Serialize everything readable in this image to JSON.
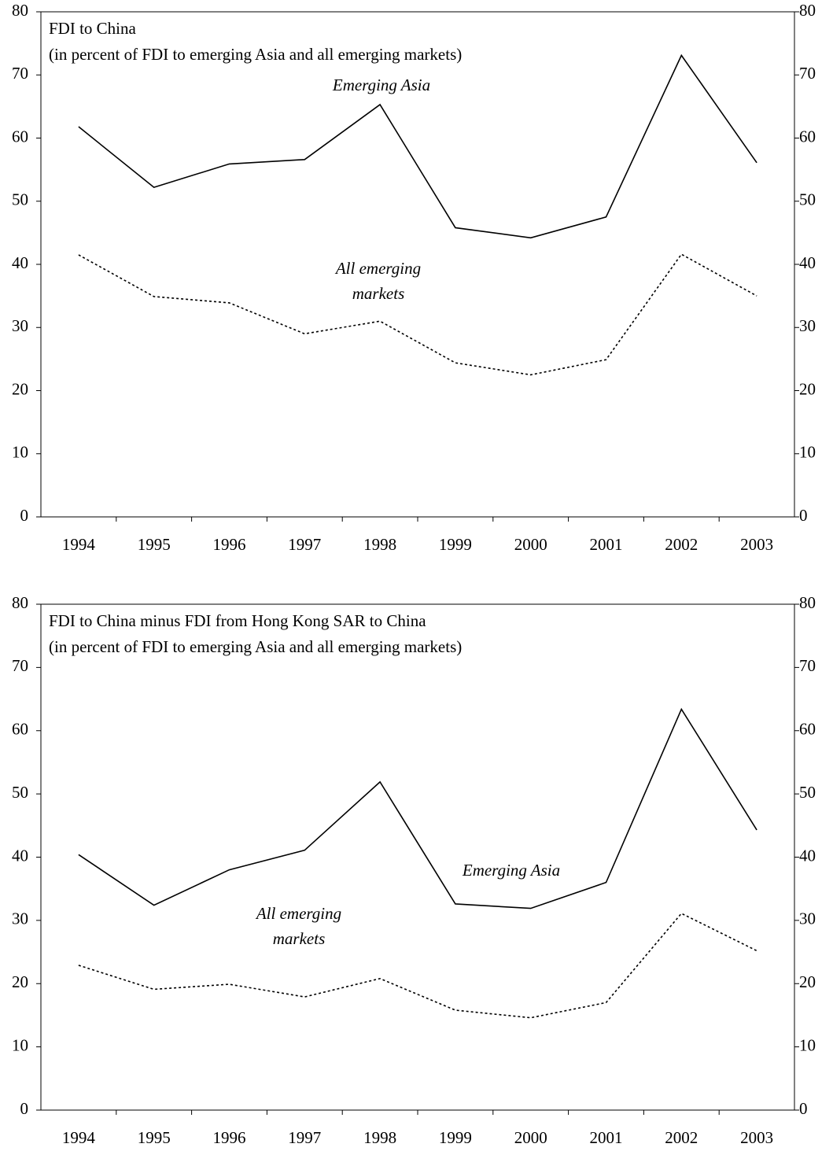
{
  "chart_data": [
    {
      "type": "line",
      "title": "FDI to China",
      "subtitle": "(in percent of FDI to emerging Asia and all emerging markets)",
      "categories": [
        "1994",
        "1995",
        "1996",
        "1997",
        "1998",
        "1999",
        "2000",
        "2001",
        "2002",
        "2003"
      ],
      "series": [
        {
          "label_lines": [
            "Emerging Asia"
          ],
          "color": "#000000",
          "style": "solid",
          "values": [
            61.8,
            52.2,
            55.9,
            56.6,
            65.3,
            45.8,
            44.2,
            47.5,
            73.1,
            56.1
          ]
        },
        {
          "label_lines": [
            "All emerging",
            "markets"
          ],
          "color": "#000000",
          "style": "dotted",
          "values": [
            41.5,
            34.9,
            33.9,
            29.0,
            31.0,
            24.4,
            22.5,
            24.9,
            41.6,
            35.0
          ]
        }
      ],
      "ylim": [
        0,
        80
      ],
      "yticks": [
        0,
        10,
        20,
        30,
        40,
        50,
        60,
        70,
        80
      ],
      "y2lim": [
        0,
        80
      ],
      "y2ticks": [
        0,
        10,
        20,
        30,
        40,
        50,
        60,
        70,
        80
      ]
    },
    {
      "type": "line",
      "title": "FDI to China minus FDI from Hong Kong SAR to China",
      "subtitle": "(in percent of FDI to emerging Asia and all emerging markets)",
      "categories": [
        "1994",
        "1995",
        "1996",
        "1997",
        "1998",
        "1999",
        "2000",
        "2001",
        "2002",
        "2003"
      ],
      "series": [
        {
          "label_lines": [
            "Emerging Asia"
          ],
          "color": "#000000",
          "style": "solid",
          "values": [
            40.4,
            32.4,
            38.0,
            41.1,
            51.9,
            32.6,
            31.9,
            36.0,
            63.4,
            44.3
          ]
        },
        {
          "label_lines": [
            "All emerging",
            "markets"
          ],
          "color": "#000000",
          "style": "dotted",
          "values": [
            22.9,
            19.1,
            19.9,
            17.9,
            20.8,
            15.8,
            14.6,
            17.0,
            31.1,
            25.2
          ]
        }
      ],
      "ylim": [
        0,
        80
      ],
      "yticks": [
        0,
        10,
        20,
        30,
        40,
        50,
        60,
        70,
        80
      ],
      "y2lim": [
        0,
        80
      ],
      "y2ticks": [
        0,
        10,
        20,
        30,
        40,
        50,
        60,
        70,
        80
      ]
    }
  ]
}
